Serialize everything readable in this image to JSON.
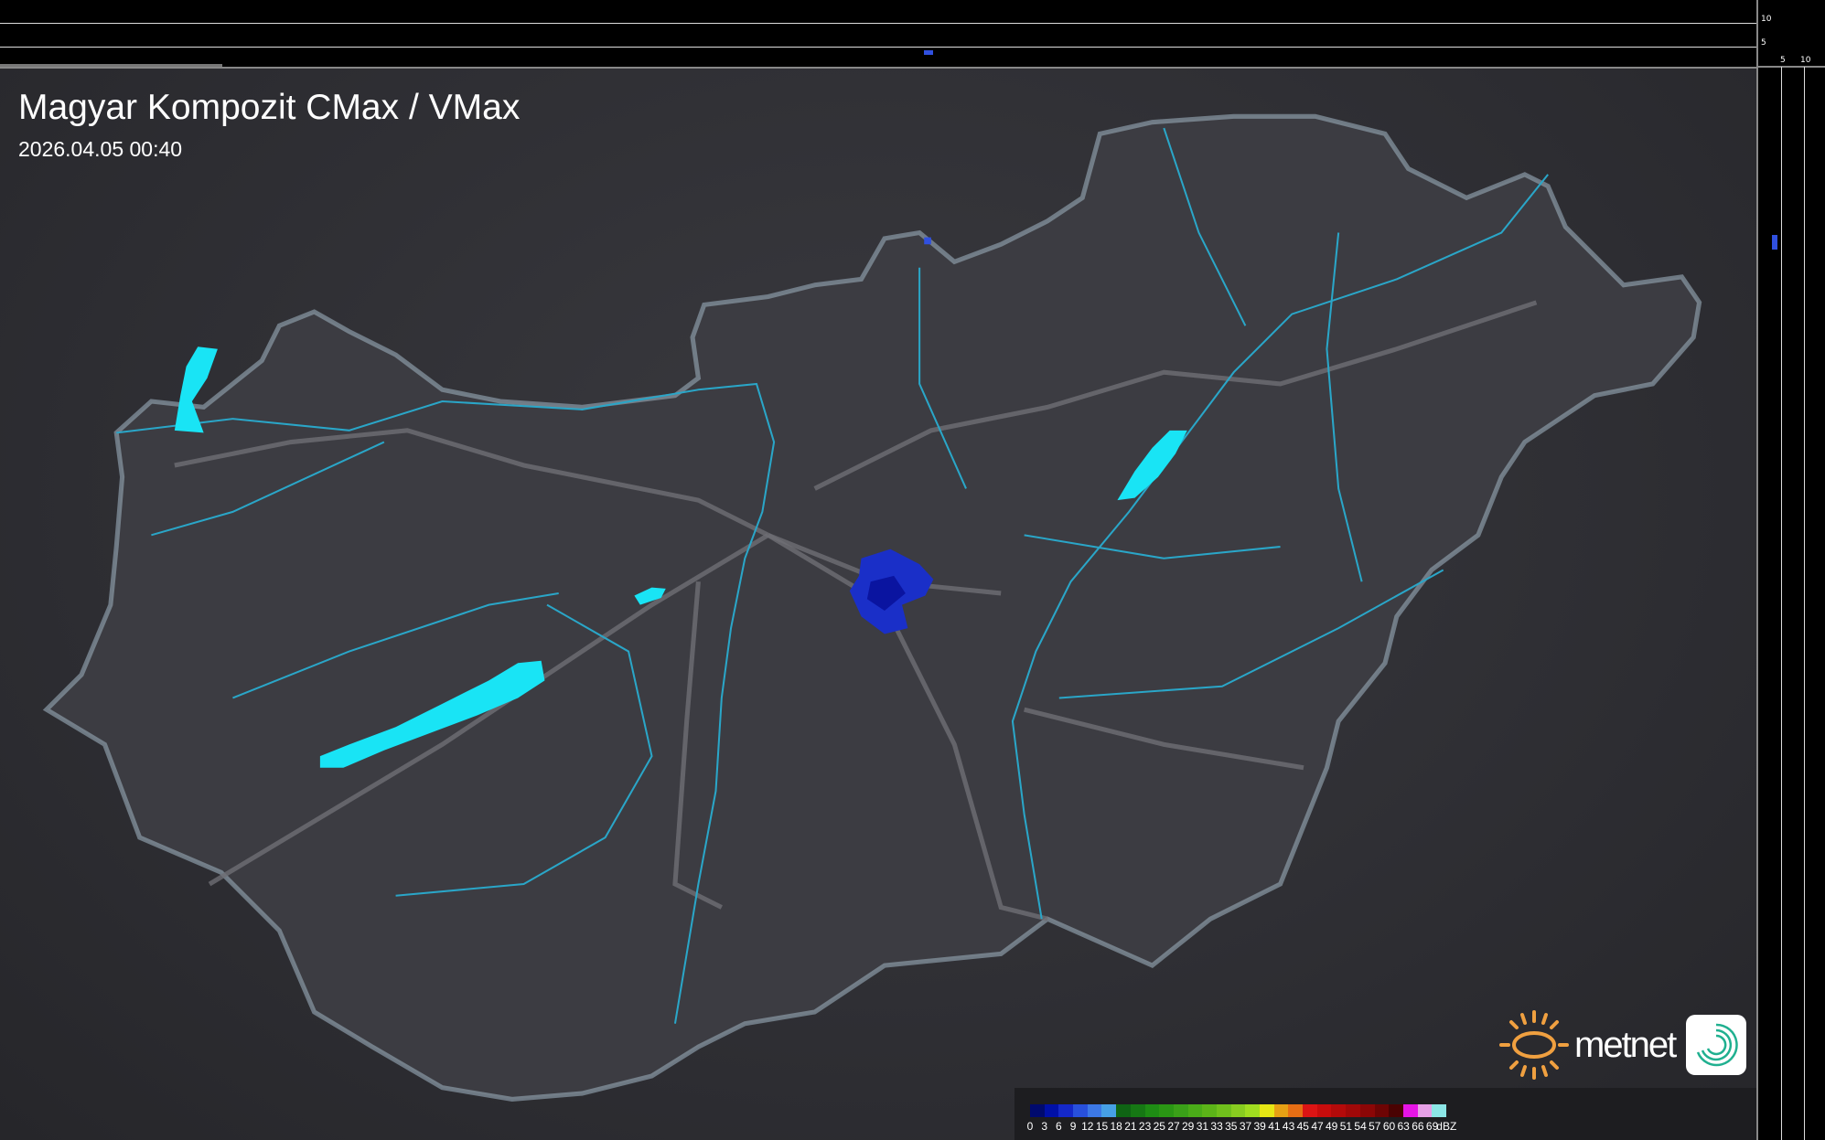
{
  "header": {
    "title": "Magyar Kompozit CMax / VMax",
    "timestamp": "2026.04.05 00:40"
  },
  "profile_top": {
    "ticks": [
      "10",
      "5"
    ]
  },
  "profile_right": {
    "ticks": [
      "5",
      "10"
    ]
  },
  "legend": {
    "unit": "dBZ",
    "labels": [
      "0",
      "3",
      "6",
      "9",
      "12",
      "15",
      "18",
      "21",
      "23",
      "25",
      "27",
      "29",
      "31",
      "33",
      "35",
      "37",
      "39",
      "41",
      "43",
      "45",
      "47",
      "49",
      "51",
      "54",
      "57",
      "60",
      "63",
      "66",
      "69"
    ],
    "colors": [
      "#000a6e",
      "#0010a8",
      "#1428c8",
      "#2850dc",
      "#3c78e6",
      "#46a0e6",
      "#0f6414",
      "#167814",
      "#1e8c14",
      "#2a9614",
      "#3aa018",
      "#4aac18",
      "#5cb418",
      "#70c01c",
      "#88cc20",
      "#a0dc20",
      "#e6e614",
      "#e6a014",
      "#e66e14",
      "#dc1414",
      "#c80c0c",
      "#b40a0a",
      "#a00808",
      "#8c0606",
      "#6e0404",
      "#4a0202",
      "#e614e6",
      "#e6a0e6",
      "#8ce6e6"
    ]
  },
  "branding": {
    "logo_text": "metnet",
    "sun_color": "#f0a040",
    "icon_color": "#20b090"
  },
  "map": {
    "region": "Hungary",
    "lake_color": "#19e4f5",
    "echo_color": "#1a2fc8",
    "river_color": "#2aa6c8"
  }
}
